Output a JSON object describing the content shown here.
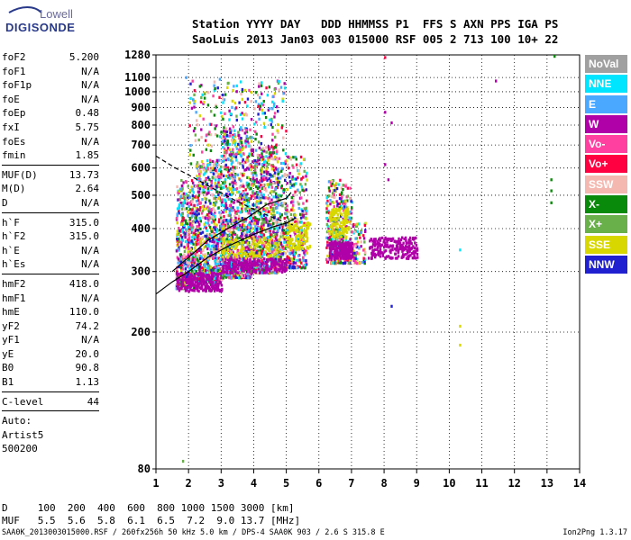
{
  "brand": {
    "line1": "Lowell",
    "line2": "DIGISONDE"
  },
  "header": {
    "row1": "Station YYYY DAY   DDD HHMMSS P1  FFS S AXN PPS IGA PS",
    "row2": "SaoLuis 2013 Jan03 003 015000 RSF 005 2 713 100 10+ 22"
  },
  "params": [
    {
      "k": "foF2",
      "v": "5.200"
    },
    {
      "k": "foF1",
      "v": "N/A"
    },
    {
      "k": "foF1p",
      "v": "N/A"
    },
    {
      "k": "foE",
      "v": "N/A"
    },
    {
      "k": "foEp",
      "v": "0.48"
    },
    {
      "k": "fxI",
      "v": "5.75"
    },
    {
      "k": "foEs",
      "v": "N/A"
    },
    {
      "k": "fmin",
      "v": "1.85"
    },
    {
      "sep": true
    },
    {
      "k": "MUF(D)",
      "v": "13.73"
    },
    {
      "k": "M(D)",
      "v": "2.64"
    },
    {
      "k": "D",
      "v": "N/A"
    },
    {
      "sep": true
    },
    {
      "k": "h`F",
      "v": "315.0"
    },
    {
      "k": "h`F2",
      "v": "315.0"
    },
    {
      "k": "h`E",
      "v": "N/A"
    },
    {
      "k": "h`Es",
      "v": "N/A"
    },
    {
      "sep": true
    },
    {
      "k": "hmF2",
      "v": "418.0"
    },
    {
      "k": "hmF1",
      "v": "N/A"
    },
    {
      "k": "hmE",
      "v": "110.0"
    },
    {
      "k": "yF2",
      "v": "74.2"
    },
    {
      "k": "yF1",
      "v": "N/A"
    },
    {
      "k": "yE",
      "v": "20.0"
    },
    {
      "k": "B0",
      "v": "90.8"
    },
    {
      "k": "B1",
      "v": "1.13"
    },
    {
      "sep": true
    },
    {
      "k": "C-level",
      "v": "44"
    },
    {
      "sep": true
    },
    {
      "text": "Auto:"
    },
    {
      "text": "Artist5"
    },
    {
      "text": "500200"
    }
  ],
  "legend": [
    {
      "label": "NoVal",
      "color": "#a0a0a0"
    },
    {
      "label": "NNE",
      "color": "#00e5ff"
    },
    {
      "label": "E",
      "color": "#4aa8ff"
    },
    {
      "label": "W",
      "color": "#b000a8"
    },
    {
      "label": "Vo-",
      "color": "#ff40a0"
    },
    {
      "label": "Vo+",
      "color": "#ff0040"
    },
    {
      "label": "SSW",
      "color": "#f4b8b0"
    },
    {
      "label": "X-",
      "color": "#0a8a0a"
    },
    {
      "label": "X+",
      "color": "#6ab04a"
    },
    {
      "label": "SSE",
      "color": "#d8d800"
    },
    {
      "label": "NNW",
      "color": "#2020d0"
    }
  ],
  "muf_table": {
    "row1": "D     100  200  400  600  800 1000 1500 3000 [km]",
    "row2": "MUF   5.5  5.6  5.8  6.1  6.5  7.2  9.0 13.7 [MHz]"
  },
  "footer": "SAA0K_2013003015000.RSF / 260fx256h 50 kHz 5.0 km / DPS-4 SAA0K 903 / 2.6 S 315.8 E",
  "version": "Ion2Png 1.3.17",
  "chart_data": {
    "type": "scatter",
    "xlim": [
      1,
      14
    ],
    "ylim": [
      80,
      1280
    ],
    "x_ticks": [
      1,
      2,
      3,
      4,
      5,
      6,
      7,
      8,
      9,
      10,
      11,
      12,
      13,
      14
    ],
    "y_ticks": [
      80,
      200,
      300,
      400,
      500,
      600,
      700,
      800,
      900,
      1000,
      1100,
      1280
    ],
    "grid": true,
    "y_scale": "log",
    "series": [
      {
        "style": "solid",
        "points": [
          [
            1.0,
            258
          ],
          [
            1.5,
            280
          ],
          [
            2.0,
            300
          ],
          [
            2.6,
            330
          ],
          [
            3.2,
            355
          ],
          [
            4.0,
            385
          ],
          [
            4.6,
            405
          ],
          [
            5.0,
            415
          ],
          [
            5.3,
            430
          ]
        ]
      },
      {
        "style": "solid",
        "points": [
          [
            1.5,
            300
          ],
          [
            2.0,
            330
          ],
          [
            2.6,
            370
          ],
          [
            3.2,
            400
          ],
          [
            3.8,
            430
          ],
          [
            4.4,
            470
          ],
          [
            5.0,
            490
          ],
          [
            5.15,
            510
          ]
        ]
      },
      {
        "style": "dashed",
        "points": [
          [
            1.0,
            650
          ],
          [
            1.6,
            600
          ],
          [
            2.2,
            560
          ],
          [
            2.8,
            520
          ],
          [
            3.4,
            485
          ],
          [
            4.0,
            455
          ],
          [
            4.6,
            430
          ],
          [
            5.2,
            410
          ]
        ]
      }
    ]
  }
}
